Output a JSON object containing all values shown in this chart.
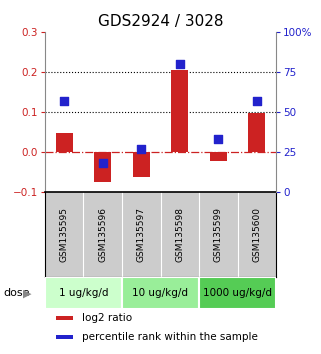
{
  "title": "GDS2924 / 3028",
  "samples": [
    "GSM135595",
    "GSM135596",
    "GSM135597",
    "GSM135598",
    "GSM135599",
    "GSM135600"
  ],
  "log2_ratio": [
    0.048,
    -0.075,
    -0.063,
    0.205,
    -0.022,
    0.098
  ],
  "percentile_rank": [
    57,
    18,
    27,
    80,
    33,
    57
  ],
  "ylim_left": [
    -0.1,
    0.3
  ],
  "ylim_right": [
    0,
    100
  ],
  "yticks_left": [
    -0.1,
    0.0,
    0.1,
    0.2,
    0.3
  ],
  "yticks_right": [
    0,
    25,
    50,
    75,
    100
  ],
  "ytick_labels_right": [
    "0",
    "25",
    "50",
    "75",
    "100%"
  ],
  "hlines": [
    0.1,
    0.2
  ],
  "dose_groups": [
    {
      "label": "1 ug/kg/d",
      "samples": [
        0,
        1
      ],
      "color": "#ccffcc"
    },
    {
      "label": "10 ug/kg/d",
      "samples": [
        2,
        3
      ],
      "color": "#99ee99"
    },
    {
      "label": "1000 ug/kg/d",
      "samples": [
        4,
        5
      ],
      "color": "#55cc55"
    }
  ],
  "bar_color": "#cc2222",
  "dot_color": "#2222cc",
  "bar_width": 0.45,
  "dot_size": 30,
  "legend_items": [
    {
      "color": "#cc2222",
      "label": "log2 ratio"
    },
    {
      "color": "#2222cc",
      "label": "percentile rank within the sample"
    }
  ],
  "ylabel_left_color": "#cc2222",
  "ylabel_right_color": "#2222cc",
  "title_fontsize": 11,
  "tick_fontsize": 7.5,
  "legend_fontsize": 7.5,
  "sample_label_color": "#cccccc",
  "sample_label_fontsize": 6.5
}
